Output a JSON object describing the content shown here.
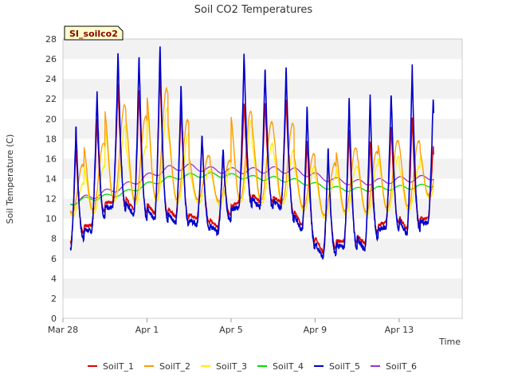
{
  "chart_data": {
    "type": "line",
    "title": "Soil CO2 Temperatures",
    "xlabel": "Time",
    "ylabel": "Soil Temperature (C)",
    "site_tag": "SI_soilco2",
    "ylim": [
      0,
      28
    ],
    "yticks": [
      0,
      2,
      4,
      6,
      8,
      10,
      12,
      14,
      16,
      18,
      20,
      22,
      24,
      26,
      28
    ],
    "xlim_days": [
      0,
      19
    ],
    "xticks": [
      {
        "label": "Mar 28",
        "day": 0
      },
      {
        "label": "Apr 1",
        "day": 4
      },
      {
        "label": "Apr 5",
        "day": 8
      },
      {
        "label": "Apr 9",
        "day": 12
      },
      {
        "label": "Apr 13",
        "day": 16
      }
    ],
    "grid": "alternating horizontal bands",
    "legend_position": "bottom",
    "data_range_days": [
      0.35,
      17.65
    ],
    "daily_extremes": {
      "days": [
        "Mar 28",
        "Mar 29",
        "Mar 30",
        "Mar 31",
        "Apr 1",
        "Apr 2",
        "Apr 3",
        "Apr 4",
        "Apr 5",
        "Apr 6",
        "Apr 7",
        "Apr 8",
        "Apr 9",
        "Apr 10",
        "Apr 11",
        "Apr 12",
        "Apr 13",
        "Apr 14"
      ],
      "soilT5_max": [
        19.4,
        22.8,
        26.8,
        26.7,
        27.7,
        23.5,
        18.5,
        17.2,
        26.7,
        25.4,
        25.3,
        21.3,
        17.2,
        22.3,
        22.4,
        22.9,
        25.4,
        22.2
      ],
      "soilT5_min": [
        7.0,
        9.0,
        11.4,
        10.1,
        9.9,
        9.5,
        9.3,
        8.4,
        11.5,
        11.0,
        11.0,
        8.4,
        5.6,
        7.3,
        6.8,
        9.4,
        8.3,
        9.6
      ],
      "soilT1_max": [
        17.3,
        20.0,
        23.5,
        23.2,
        25.0,
        21.2,
        17.8,
        16.6,
        21.7,
        21.8,
        22.2,
        17.8,
        16.8,
        19.0,
        18.0,
        19.4,
        20.3,
        17.4
      ],
      "soilT3_max": [
        13.5,
        15.2,
        19.3,
        17.2,
        21.0,
        18.5,
        14.8,
        15.0,
        19.8,
        17.5,
        16.8,
        15.2,
        14.2,
        15.2,
        15.4,
        16.2,
        15.2,
        16.5
      ],
      "soilT3_min": [
        10.3,
        10.6,
        11.8,
        11.5,
        11.8,
        11.6,
        11.6,
        11.4,
        11.7,
        11.6,
        11.5,
        10.8,
        10.0,
        10.5,
        10.4,
        10.8,
        10.9,
        12.2
      ]
    },
    "series": [
      {
        "name": "SoilT_1",
        "color": "#dd0000"
      },
      {
        "name": "SoilT_2",
        "color": "#ff9900"
      },
      {
        "name": "SoilT_3",
        "color": "#ffee00"
      },
      {
        "name": "SoilT_4",
        "color": "#00dd00"
      },
      {
        "name": "SoilT_5",
        "color": "#0000cc"
      },
      {
        "name": "SoilT_6",
        "color": "#9933cc"
      }
    ],
    "smooth_series": {
      "SoilT_4": {
        "days": [
          0.3,
          1,
          2,
          3,
          4,
          5,
          6,
          7,
          8,
          9,
          10,
          11,
          12,
          13,
          14,
          15,
          16,
          17,
          17.65
        ],
        "values": [
          11.5,
          11.9,
          12.2,
          12.6,
          13.4,
          14.0,
          14.3,
          14.4,
          14.3,
          14.1,
          14.0,
          13.8,
          13.4,
          13.0,
          12.9,
          13.0,
          13.1,
          13.2,
          13.4
        ]
      },
      "SoilT_6": {
        "days": [
          0.3,
          1,
          2,
          3,
          4,
          5,
          6,
          7,
          8,
          9,
          10,
          11,
          12,
          13,
          14,
          15,
          16,
          17,
          17.65
        ],
        "values": [
          11.5,
          12.0,
          12.6,
          13.3,
          14.2,
          15.0,
          15.2,
          14.9,
          14.8,
          14.8,
          14.9,
          14.8,
          14.3,
          13.8,
          13.6,
          13.7,
          13.9,
          14.0,
          14.2
        ]
      }
    }
  }
}
